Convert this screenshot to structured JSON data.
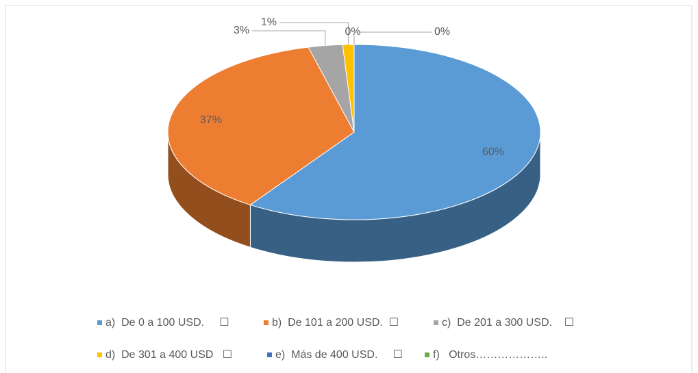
{
  "chart_data": {
    "type": "pie3d",
    "series": [
      {
        "name": "a)  De 0 a 100 USD.     ☐",
        "color": "#5b9bd5"
      },
      {
        "name": "b)  De 101 a 200 USD.  ☐",
        "color": "#ed7d31"
      },
      {
        "name": "c)  De 201 a 300 USD.    ☐",
        "color": "#a5a5a5"
      },
      {
        "name": "d)  De 301 a 400 USD   ☐",
        "color": "#ffc000"
      },
      {
        "name": "e)  Más de 400 USD.     ☐",
        "color": "#4472c4"
      },
      {
        "name": "f)   Otros………………..",
        "color": "#70ad47"
      }
    ],
    "values": [
      60,
      37,
      3,
      1,
      0,
      0
    ],
    "value_labels": [
      "60%",
      "37%",
      "3%",
      "1%",
      "0%",
      "0%"
    ]
  }
}
